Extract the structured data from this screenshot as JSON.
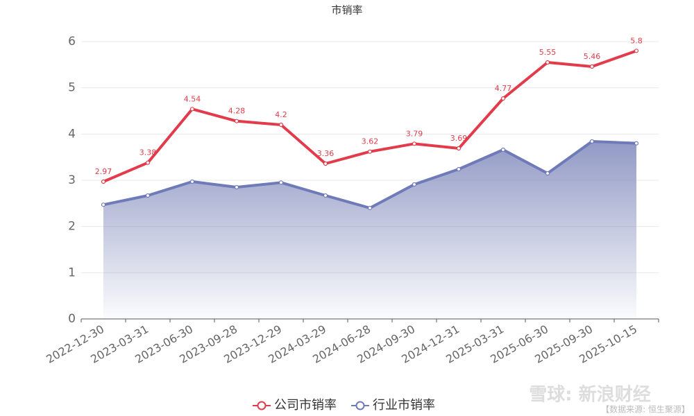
{
  "chart_data": {
    "type": "line",
    "title": "市销率",
    "categories": [
      "2022-12-30",
      "2023-03-31",
      "2023-06-30",
      "2023-09-28",
      "2023-12-29",
      "2024-03-29",
      "2024-06-28",
      "2024-09-30",
      "2024-12-31",
      "2025-03-31",
      "2025-06-30",
      "2025-09-30",
      "2025-10-15"
    ],
    "series": [
      {
        "name": "公司市销率",
        "color": "#e23b4b",
        "values": [
          2.97,
          3.38,
          4.54,
          4.28,
          4.2,
          3.36,
          3.62,
          3.79,
          3.69,
          4.77,
          5.55,
          5.46,
          5.8
        ],
        "labels": true
      },
      {
        "name": "行业市销率",
        "color": "#6f7ab8",
        "values": [
          2.47,
          2.67,
          2.97,
          2.85,
          2.95,
          2.67,
          2.4,
          2.91,
          3.24,
          3.66,
          3.15,
          3.84,
          3.8
        ],
        "area": true
      }
    ],
    "ylim": [
      0,
      6
    ],
    "yticks": [
      0,
      1,
      2,
      3,
      4,
      5,
      6
    ],
    "grid": true,
    "legend": "bottom",
    "watermark": "雪球: 新浪财经",
    "source": "【数据来源: 恒生聚源】"
  }
}
